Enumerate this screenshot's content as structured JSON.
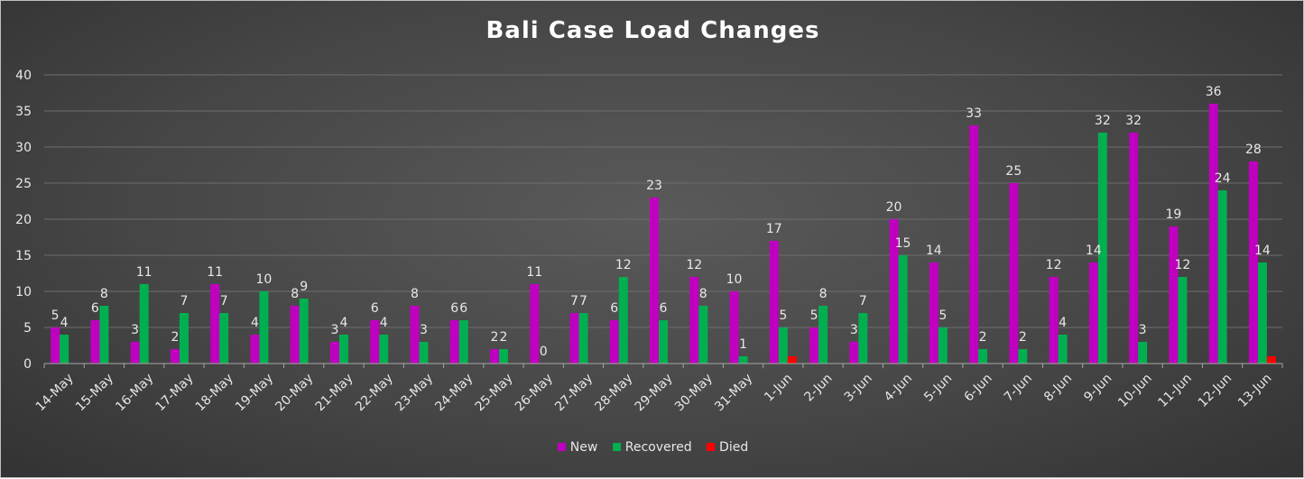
{
  "chart_data": {
    "type": "bar",
    "title": "Bali Case Load Changes",
    "categories": [
      "14-May",
      "15-May",
      "16-May",
      "17-May",
      "18-May",
      "19-May",
      "20-May",
      "21-May",
      "22-May",
      "23-May",
      "24-May",
      "25-May",
      "26-May",
      "27-May",
      "28-May",
      "29-May",
      "30-May",
      "31-May",
      "1-Jun",
      "2-Jun",
      "3-Jun",
      "4-Jun",
      "5-Jun",
      "6-Jun",
      "7-Jun",
      "8-Jun",
      "9-Jun",
      "10-Jun",
      "11-Jun",
      "12-Jun",
      "13-Jun"
    ],
    "series": [
      {
        "name": "New",
        "color": "#c000c0",
        "values": [
          5,
          6,
          3,
          2,
          11,
          4,
          8,
          3,
          6,
          8,
          6,
          2,
          11,
          7,
          6,
          23,
          12,
          10,
          17,
          5,
          3,
          20,
          14,
          33,
          25,
          12,
          14,
          32,
          19,
          36,
          28
        ]
      },
      {
        "name": "Recovered",
        "color": "#00b050",
        "values": [
          4,
          8,
          11,
          7,
          7,
          10,
          9,
          4,
          4,
          3,
          6,
          2,
          0,
          7,
          12,
          6,
          8,
          1,
          5,
          8,
          7,
          15,
          5,
          2,
          2,
          4,
          32,
          3,
          12,
          24,
          14
        ]
      },
      {
        "name": "Died",
        "color": "#ff0000",
        "values": [
          0,
          0,
          0,
          0,
          0,
          0,
          0,
          0,
          0,
          0,
          0,
          0,
          0,
          0,
          0,
          0,
          0,
          0,
          1,
          0,
          0,
          0,
          0,
          0,
          0,
          0,
          0,
          0,
          0,
          0,
          1
        ]
      }
    ],
    "data_labels": [
      {
        "series": "New",
        "index": 0,
        "text": "5"
      },
      {
        "series": "Recovered",
        "index": 0,
        "text": "4"
      },
      {
        "series": "New",
        "index": 1,
        "text": "6"
      },
      {
        "series": "Recovered",
        "index": 1,
        "text": "8"
      },
      {
        "series": "New",
        "index": 2,
        "text": "3"
      },
      {
        "series": "Recovered",
        "index": 2,
        "text": "11"
      },
      {
        "series": "New",
        "index": 3,
        "text": "2"
      },
      {
        "series": "Recovered",
        "index": 3,
        "text": "7"
      },
      {
        "series": "New",
        "index": 4,
        "text": "11"
      },
      {
        "series": "Recovered",
        "index": 4,
        "text": "7"
      },
      {
        "series": "New",
        "index": 5,
        "text": "4"
      },
      {
        "series": "Recovered",
        "index": 5,
        "text": "10"
      },
      {
        "series": "New",
        "index": 6,
        "text": "8"
      },
      {
        "series": "Recovered",
        "index": 6,
        "text": "9"
      },
      {
        "series": "New",
        "index": 7,
        "text": "3"
      },
      {
        "series": "Recovered",
        "index": 7,
        "text": "4"
      },
      {
        "series": "New",
        "index": 8,
        "text": "6"
      },
      {
        "series": "Recovered",
        "index": 8,
        "text": "4"
      },
      {
        "series": "New",
        "index": 9,
        "text": "8"
      },
      {
        "series": "Recovered",
        "index": 9,
        "text": "3"
      },
      {
        "series": "New",
        "index": 10,
        "text": "6"
      },
      {
        "series": "Recovered",
        "index": 10,
        "text": "6"
      },
      {
        "series": "New",
        "index": 11,
        "text": "2"
      },
      {
        "series": "Recovered",
        "index": 11,
        "text": "2"
      },
      {
        "series": "New",
        "index": 12,
        "text": "11"
      },
      {
        "series": "Recovered",
        "index": 12,
        "text": "0"
      },
      {
        "series": "New",
        "index": 13,
        "text": "7"
      },
      {
        "series": "Recovered",
        "index": 13,
        "text": "7"
      },
      {
        "series": "New",
        "index": 14,
        "text": "6"
      },
      {
        "series": "Recovered",
        "index": 14,
        "text": "12"
      },
      {
        "series": "New",
        "index": 15,
        "text": "23"
      },
      {
        "series": "Recovered",
        "index": 15,
        "text": "6"
      },
      {
        "series": "New",
        "index": 16,
        "text": "12"
      },
      {
        "series": "Recovered",
        "index": 16,
        "text": "8"
      },
      {
        "series": "New",
        "index": 17,
        "text": "10"
      },
      {
        "series": "Recovered",
        "index": 17,
        "text": "1"
      },
      {
        "series": "New",
        "index": 18,
        "text": "17"
      },
      {
        "series": "Recovered",
        "index": 18,
        "text": "5"
      },
      {
        "series": "New",
        "index": 19,
        "text": "5"
      },
      {
        "series": "Recovered",
        "index": 19,
        "text": "8"
      },
      {
        "series": "New",
        "index": 20,
        "text": "3"
      },
      {
        "series": "Recovered",
        "index": 20,
        "text": "7"
      },
      {
        "series": "New",
        "index": 21,
        "text": "20"
      },
      {
        "series": "Recovered",
        "index": 21,
        "text": "15"
      },
      {
        "series": "New",
        "index": 22,
        "text": "14"
      },
      {
        "series": "Recovered",
        "index": 22,
        "text": "5"
      },
      {
        "series": "New",
        "index": 23,
        "text": "33"
      },
      {
        "series": "Recovered",
        "index": 23,
        "text": "2"
      },
      {
        "series": "New",
        "index": 24,
        "text": "25"
      },
      {
        "series": "Recovered",
        "index": 24,
        "text": "2"
      },
      {
        "series": "New",
        "index": 25,
        "text": "12"
      },
      {
        "series": "Recovered",
        "index": 25,
        "text": "4"
      },
      {
        "series": "New",
        "index": 26,
        "text": "14"
      },
      {
        "series": "Recovered",
        "index": 26,
        "text": "32"
      },
      {
        "series": "New",
        "index": 27,
        "text": "32"
      },
      {
        "series": "Recovered",
        "index": 27,
        "text": "3"
      },
      {
        "series": "New",
        "index": 28,
        "text": "19"
      },
      {
        "series": "Recovered",
        "index": 28,
        "text": "12"
      },
      {
        "series": "New",
        "index": 29,
        "text": "36"
      },
      {
        "series": "Recovered",
        "index": 29,
        "text": "24"
      },
      {
        "series": "New",
        "index": 30,
        "text": "28"
      },
      {
        "series": "Recovered",
        "index": 30,
        "text": "14"
      }
    ],
    "y_ticks": [
      "0",
      "5",
      "10",
      "15",
      "20",
      "25",
      "30",
      "35",
      "40"
    ],
    "ylim": [
      0,
      40
    ],
    "xlabel": "",
    "ylabel": "",
    "grid": true,
    "legend_position": "bottom",
    "colors": {
      "background": "#454545",
      "text": "#e8e8e8",
      "gridline": "#6e6e6e"
    }
  }
}
